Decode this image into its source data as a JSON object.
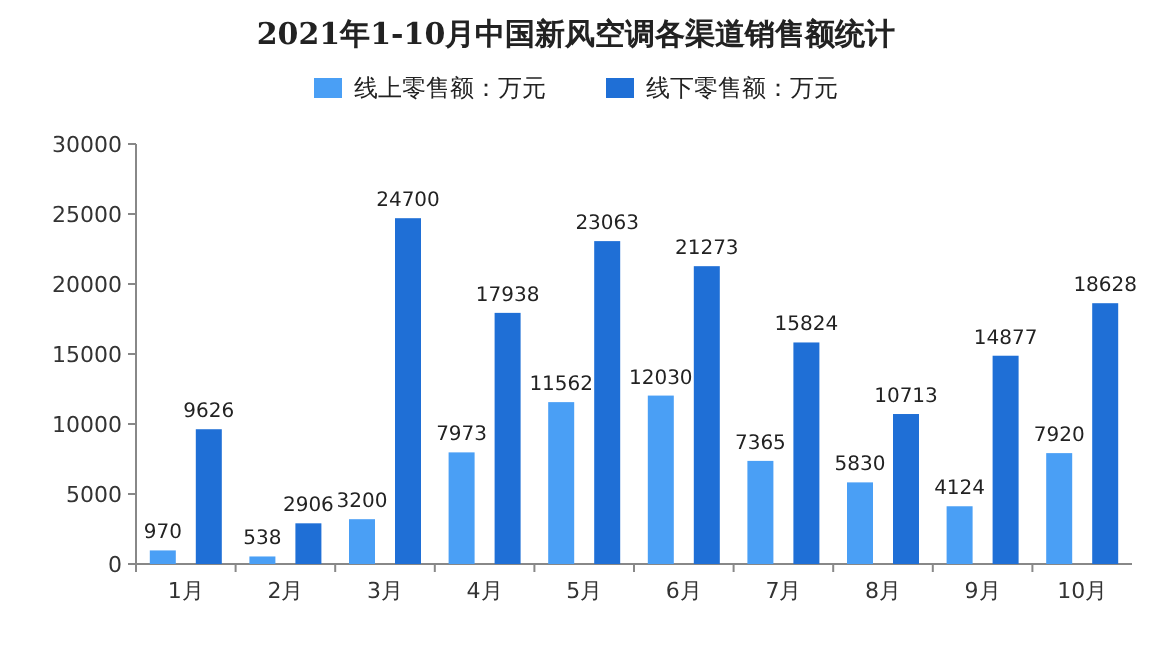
{
  "chart_data": {
    "type": "bar",
    "title": "2021年1-10月中国新风空调各渠道销售额统计",
    "categories": [
      "1月",
      "2月",
      "3月",
      "4月",
      "5月",
      "6月",
      "7月",
      "8月",
      "9月",
      "10月"
    ],
    "series": [
      {
        "name": "线上零售额：万元",
        "color": "#4a9ff5",
        "values": [
          970,
          538,
          3200,
          7973,
          11562,
          12030,
          7365,
          5830,
          4124,
          7920
        ]
      },
      {
        "name": "线下零售额：万元",
        "color": "#1f6fd6",
        "values": [
          9626,
          2906,
          24700,
          17938,
          23063,
          21273,
          15824,
          10713,
          14877,
          18628
        ]
      }
    ],
    "ylim": [
      0,
      30000
    ],
    "yticks": [
      0,
      5000,
      10000,
      15000,
      20000,
      25000,
      30000
    ],
    "data_labels": true,
    "legend": "top"
  }
}
